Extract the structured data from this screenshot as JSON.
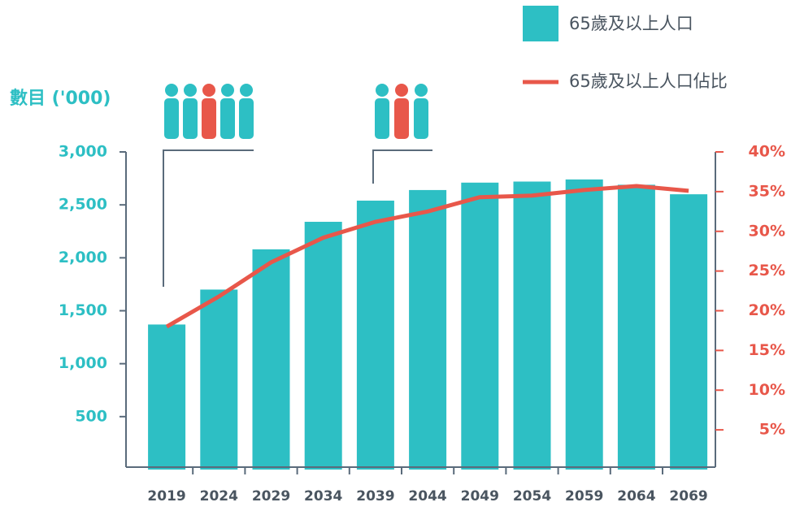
{
  "chart_data": {
    "type": "bar_line",
    "y_label": "數目 ('000)",
    "categories": [
      "2019",
      "2024",
      "2029",
      "2034",
      "2039",
      "2044",
      "2049",
      "2054",
      "2059",
      "2064",
      "2069"
    ],
    "series": [
      {
        "name": "65歲及以上人口",
        "type": "bar",
        "color": "#2dbfc4",
        "axis": "y",
        "values": [
          1370,
          1700,
          2080,
          2340,
          2540,
          2640,
          2710,
          2720,
          2740,
          2690,
          2600
        ]
      },
      {
        "name": "65歲及以上人口佔比",
        "type": "line",
        "color": "#e8574a",
        "axis": "y2",
        "values": [
          18,
          21.8,
          26.1,
          29.2,
          31.2,
          32.5,
          34.3,
          34.5,
          35.2,
          35.7,
          35.1
        ]
      }
    ],
    "ylim": [
      0,
      3000
    ],
    "yticks": [
      500,
      {
        "value": 1000,
        "label": "1,000"
      },
      {
        "value": 1500,
        "label": "1,500"
      },
      {
        "value": 2000,
        "label": "2,000"
      },
      {
        "value": 2500,
        "label": "2,500"
      },
      {
        "value": 3000,
        "label": "3,000"
      }
    ],
    "y2lim": [
      0,
      40
    ],
    "y2ticks": [
      {
        "value": 5,
        "label": "5%"
      },
      {
        "value": 10,
        "label": "10%"
      },
      {
        "value": 15,
        "label": "15%"
      },
      {
        "value": 20,
        "label": "20%"
      },
      {
        "value": 25,
        "label": "25%"
      },
      {
        "value": 30,
        "label": "30%"
      },
      {
        "value": 35,
        "label": "35%"
      },
      {
        "value": 40,
        "label": "40%"
      }
    ]
  }
}
